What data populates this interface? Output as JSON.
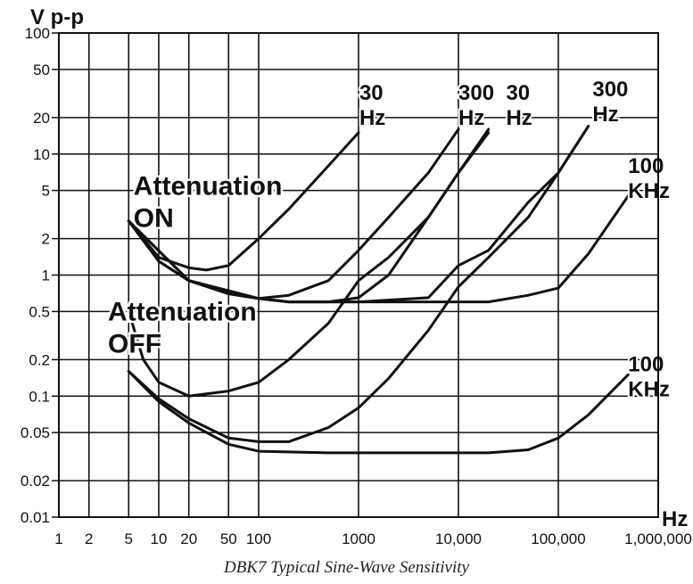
{
  "chart_data": {
    "type": "line",
    "x_scale": "log",
    "y_scale": "log",
    "xlim": [
      1,
      1000000
    ],
    "ylim": [
      0.01,
      100
    ],
    "ylabel": "V p-p",
    "xlabel": "Hz",
    "caption": "DBK7 Typical Sine-Wave Sensitivity",
    "grid": true,
    "x_ticks": [
      {
        "value": 1,
        "label": "1"
      },
      {
        "value": 2,
        "label": "2"
      },
      {
        "value": 5,
        "label": "5"
      },
      {
        "value": 10,
        "label": "10"
      },
      {
        "value": 20,
        "label": "20"
      },
      {
        "value": 50,
        "label": "50"
      },
      {
        "value": 100,
        "label": "100"
      },
      {
        "value": 1000,
        "label": "1000"
      },
      {
        "value": 10000,
        "label": "10,000"
      },
      {
        "value": 100000,
        "label": "100,000"
      },
      {
        "value": 1000000,
        "label": "1,000,000"
      }
    ],
    "x_grid": [
      1,
      2,
      5,
      10,
      20,
      50,
      100,
      1000,
      10000,
      100000,
      1000000
    ],
    "y_ticks": [
      {
        "value": 100,
        "label": "100"
      },
      {
        "value": 50,
        "label": "50"
      },
      {
        "value": 20,
        "label": "20"
      },
      {
        "value": 10,
        "label": "10"
      },
      {
        "value": 5,
        "label": "5"
      },
      {
        "value": 2,
        "label": "2"
      },
      {
        "value": 1,
        "label": "1"
      },
      {
        "value": 0.5,
        "label": "0.5"
      },
      {
        "value": 0.2,
        "label": "0.2"
      },
      {
        "value": 0.1,
        "label": "0.1"
      },
      {
        "value": 0.05,
        "label": "0.05"
      },
      {
        "value": 0.02,
        "label": "0.02"
      },
      {
        "value": 0.01,
        "label": "0.01"
      }
    ],
    "group_labels": [
      {
        "lines": [
          "Attenuation",
          "ON"
        ],
        "x": 5.6,
        "y": 4.6
      },
      {
        "lines": [
          "Attenuation",
          "OFF"
        ],
        "x": 3.1,
        "y": 0.42
      }
    ],
    "series": [
      {
        "group": "on",
        "label_lines": [
          "30",
          "Hz"
        ],
        "label_at": [
          1020,
          28
        ],
        "points": [
          [
            5,
            2.8
          ],
          [
            10,
            1.4
          ],
          [
            20,
            1.15
          ],
          [
            30,
            1.1
          ],
          [
            50,
            1.2
          ],
          [
            100,
            2.0
          ],
          [
            200,
            3.5
          ],
          [
            500,
            8
          ],
          [
            1000,
            15
          ]
        ]
      },
      {
        "group": "on",
        "label_lines": [
          "300",
          "Hz"
        ],
        "label_at": [
          10000,
          28
        ],
        "points": [
          [
            5,
            2.8
          ],
          [
            10,
            1.3
          ],
          [
            20,
            0.9
          ],
          [
            50,
            0.7
          ],
          [
            100,
            0.64
          ],
          [
            200,
            0.68
          ],
          [
            500,
            0.9
          ],
          [
            1000,
            1.6
          ],
          [
            2000,
            3
          ],
          [
            5000,
            7
          ],
          [
            10000,
            16
          ]
        ]
      },
      {
        "group": "on",
        "label_lines": [
          "30",
          "Hz"
        ],
        "label_at": [
          30000,
          28
        ],
        "points": [
          [
            5,
            2.8
          ],
          [
            10,
            1.3
          ],
          [
            20,
            0.9
          ],
          [
            50,
            0.7
          ],
          [
            100,
            0.64
          ],
          [
            200,
            0.6
          ],
          [
            500,
            0.6
          ],
          [
            1000,
            0.65
          ],
          [
            2000,
            1.0
          ],
          [
            5000,
            3
          ],
          [
            10000,
            7
          ],
          [
            20000,
            16
          ]
        ]
      },
      {
        "group": "on",
        "label_lines": [
          "300",
          "Hz"
        ],
        "label_at": [
          220000,
          30
        ],
        "points": [
          [
            5,
            2.8
          ],
          [
            20,
            0.9
          ],
          [
            100,
            0.64
          ],
          [
            200,
            0.6
          ],
          [
            1000,
            0.6
          ],
          [
            5000,
            0.6
          ],
          [
            20000,
            0.6
          ],
          [
            50000,
            0.68
          ],
          [
            100000,
            0.78
          ],
          [
            200000,
            1.5
          ],
          [
            500000,
            4.5
          ]
        ]
      },
      {
        "group": "on",
        "label_lines": [
          "100",
          "KHz"
        ],
        "label_at": [
          500000,
          7
        ],
        "points": [
          [
            5,
            2.8
          ],
          [
            20,
            0.9
          ],
          [
            100,
            0.64
          ],
          [
            200,
            0.6
          ],
          [
            1000,
            0.6
          ],
          [
            5000,
            0.65
          ],
          [
            10000,
            1.2
          ],
          [
            20000,
            1.6
          ],
          [
            50000,
            4
          ],
          [
            100000,
            7
          ],
          [
            200000,
            17
          ]
        ]
      },
      {
        "group": "off",
        "label_lines": [
          "100",
          "KHz"
        ],
        "label_at": [
          500000,
          0.16
        ],
        "points": [
          [
            5,
            0.5
          ],
          [
            7,
            0.2
          ],
          [
            10,
            0.13
          ],
          [
            20,
            0.1
          ],
          [
            50,
            0.11
          ],
          [
            100,
            0.13
          ],
          [
            200,
            0.2
          ],
          [
            500,
            0.4
          ],
          [
            1000,
            0.9
          ],
          [
            2000,
            1.4
          ],
          [
            5000,
            3
          ],
          [
            10000,
            7
          ],
          [
            20000,
            15
          ]
        ]
      },
      {
        "group": "off",
        "label_lines": [],
        "label_at": null,
        "points": [
          [
            5,
            0.16
          ],
          [
            10,
            0.095
          ],
          [
            20,
            0.065
          ],
          [
            50,
            0.045
          ],
          [
            100,
            0.042
          ],
          [
            200,
            0.042
          ],
          [
            500,
            0.055
          ],
          [
            1000,
            0.08
          ],
          [
            2000,
            0.14
          ],
          [
            5000,
            0.35
          ],
          [
            10000,
            0.8
          ],
          [
            20000,
            1.4
          ],
          [
            50000,
            3
          ],
          [
            100000,
            7
          ],
          [
            200000,
            17
          ]
        ]
      },
      {
        "group": "off",
        "label_lines": [],
        "label_at": null,
        "points": [
          [
            5,
            0.16
          ],
          [
            10,
            0.09
          ],
          [
            20,
            0.06
          ],
          [
            50,
            0.04
          ],
          [
            100,
            0.035
          ],
          [
            500,
            0.034
          ],
          [
            1000,
            0.034
          ],
          [
            10000,
            0.034
          ],
          [
            20000,
            0.034
          ],
          [
            50000,
            0.036
          ],
          [
            100000,
            0.045
          ],
          [
            200000,
            0.07
          ],
          [
            500000,
            0.15
          ]
        ]
      }
    ]
  }
}
